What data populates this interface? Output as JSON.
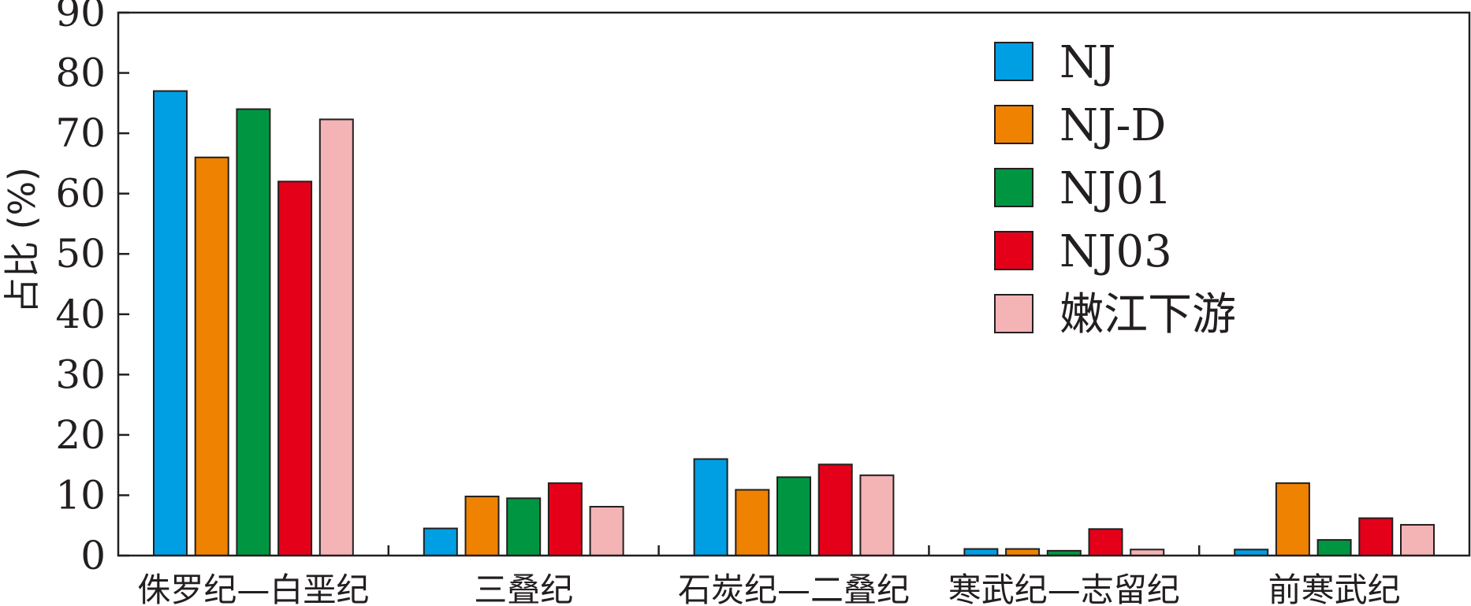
{
  "chart_data": {
    "type": "bar",
    "ylabel": "占比 (%)",
    "xlabel": "",
    "ylim": [
      0,
      90
    ],
    "yticks": [
      0,
      10,
      20,
      30,
      40,
      50,
      60,
      70,
      80,
      90
    ],
    "categories": [
      "侏罗纪—白垩纪",
      "三叠纪",
      "石炭纪—二叠纪",
      "寒武纪—志留纪",
      "前寒武纪"
    ],
    "series": [
      {
        "name": "NJ",
        "color": "#009fe3",
        "values": [
          77,
          4.5,
          16,
          1.1,
          1
        ]
      },
      {
        "name": "NJ-D",
        "color": "#ef8200",
        "values": [
          66,
          9.8,
          10.9,
          1.1,
          12
        ]
      },
      {
        "name": "NJ01",
        "color": "#009641",
        "values": [
          74,
          9.5,
          13,
          0.8,
          2.6
        ]
      },
      {
        "name": "NJ03",
        "color": "#e50019",
        "values": [
          62,
          12,
          15.1,
          4.4,
          6.2
        ]
      },
      {
        "name": "嫩江下游",
        "color": "#f4b3b5",
        "values": [
          72.3,
          8.1,
          13.3,
          1,
          5.1
        ]
      }
    ],
    "legend_position": "top-right",
    "grid": false
  }
}
